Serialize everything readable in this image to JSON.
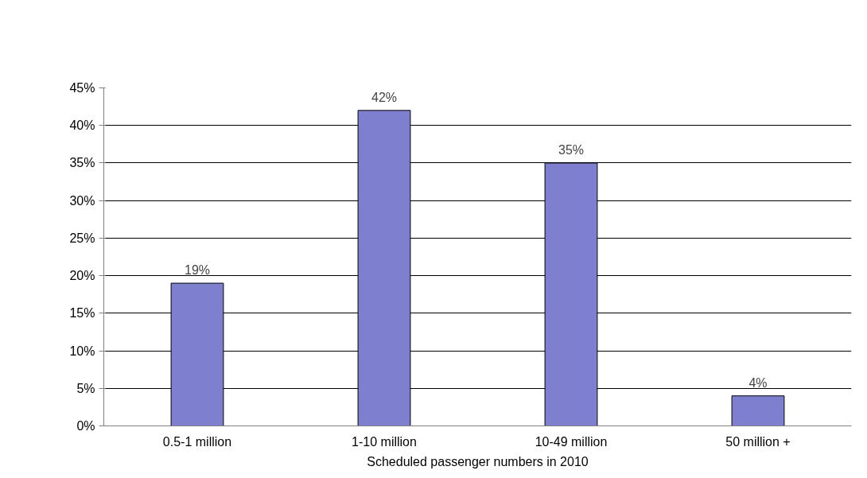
{
  "chart_data": {
    "type": "bar",
    "xlabel": "Scheduled passenger numbers in 2010",
    "categories": [
      "0.5-1 million",
      "1-10 million",
      "10-49 million",
      "50 million +"
    ],
    "values": [
      19,
      42,
      35,
      4
    ],
    "value_labels": [
      "19%",
      "42%",
      "35%",
      "4%"
    ],
    "color": "#7f7fcf",
    "ylim": [
      0,
      45
    ],
    "yticks": [
      {
        "value": 0,
        "label": "0%"
      },
      {
        "value": 5,
        "label": "5%"
      },
      {
        "value": 10,
        "label": "10%"
      },
      {
        "value": 15,
        "label": "15%"
      },
      {
        "value": 20,
        "label": "20%"
      },
      {
        "value": 25,
        "label": "25%"
      },
      {
        "value": 30,
        "label": "30%"
      },
      {
        "value": 35,
        "label": "35%"
      },
      {
        "value": 40,
        "label": "40%"
      },
      {
        "value": 45,
        "label": "45%"
      }
    ],
    "grid": "y"
  }
}
